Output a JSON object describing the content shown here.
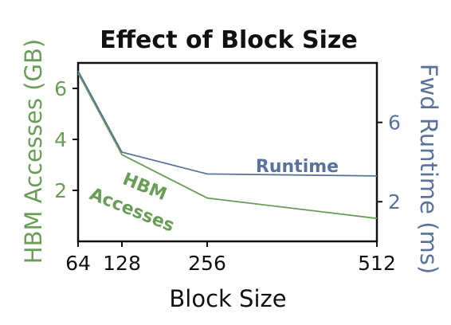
{
  "chart_data": {
    "type": "line",
    "title": "Effect of Block Size",
    "xlabel": "Block Size",
    "ylabel_left": "HBM Accesses (GB)",
    "ylabel_right": "Fwd Runtime (ms)",
    "x": [
      64,
      128,
      256,
      512
    ],
    "xticks": [
      "64",
      "128",
      "256",
      "512"
    ],
    "ylim_left": [
      0,
      7
    ],
    "yticks_left": [
      "2",
      "4",
      "6"
    ],
    "ylim_right": [
      0,
      9
    ],
    "yticks_right": [
      "2",
      "6"
    ],
    "grid": false,
    "series": [
      {
        "name": "HBM Accesses",
        "axis": "left",
        "color": "#6a9e58",
        "values": [
          6.6,
          3.4,
          1.7,
          0.9
        ]
      },
      {
        "name": "Runtime",
        "axis": "right",
        "color": "#5a739b",
        "values": [
          8.6,
          4.5,
          3.4,
          3.3
        ]
      }
    ],
    "annotations": [
      {
        "text": "HBM",
        "series": "HBM Accesses"
      },
      {
        "text": "Accesses",
        "series": "HBM Accesses"
      },
      {
        "text": "Runtime",
        "series": "Runtime"
      }
    ]
  }
}
